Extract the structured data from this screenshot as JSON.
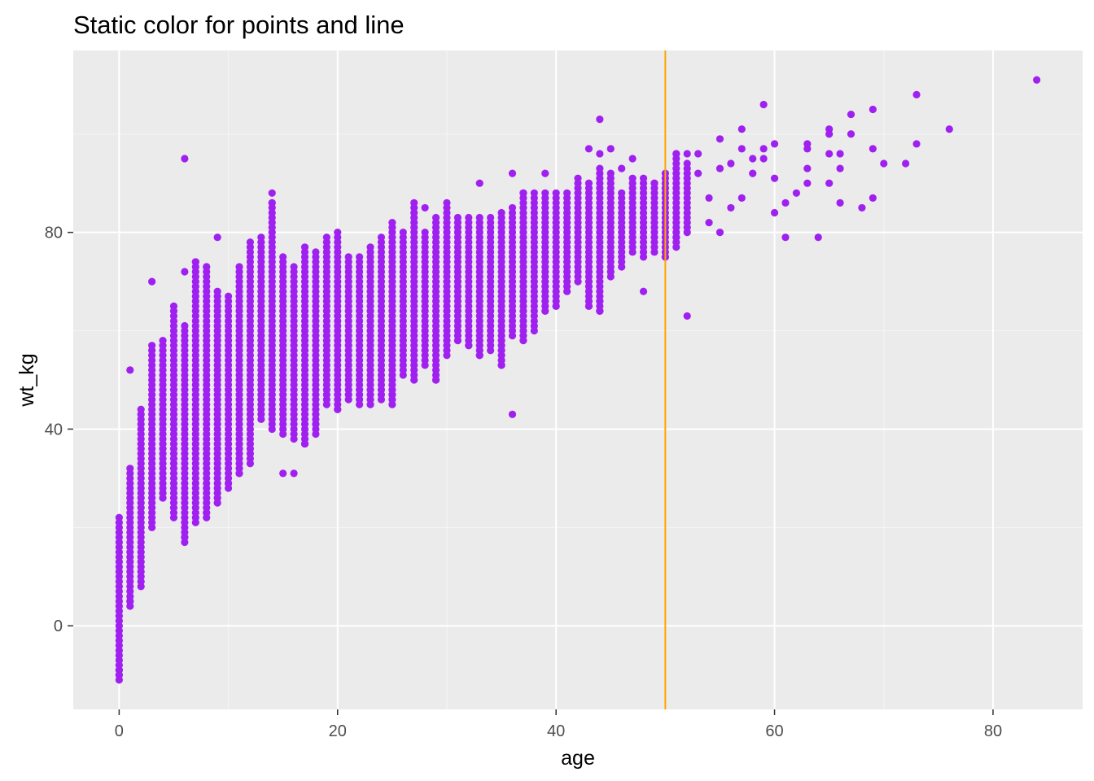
{
  "colors": {
    "panel_background": "#ebebeb",
    "grid_major": "#ffffff",
    "grid_minor": "#f5f5f5",
    "point": "#a020f0",
    "vline": "#ffa500",
    "tick": "#333333",
    "tick_label": "#4d4d4d"
  },
  "chart_data": {
    "type": "scatter",
    "title": "Static color for points and line",
    "xlabel": "age",
    "ylabel": "wt_kg",
    "xlim": [
      -4.2,
      88.2
    ],
    "ylim": [
      -17,
      117
    ],
    "x_ticks": [
      0,
      20,
      40,
      60,
      80
    ],
    "y_ticks": [
      0,
      40,
      80
    ],
    "x_tick_labels": [
      "0",
      "20",
      "40",
      "60",
      "80"
    ],
    "y_tick_labels": [
      "0",
      "40",
      "80"
    ],
    "grid": true,
    "legend": "none",
    "vline": {
      "x": 50
    },
    "columns": [
      [
        0,
        -11,
        22
      ],
      [
        1,
        4,
        32
      ],
      [
        2,
        8,
        44
      ],
      [
        3,
        20,
        57
      ],
      [
        4,
        26,
        58
      ],
      [
        5,
        22,
        65
      ],
      [
        6,
        17,
        61
      ],
      [
        7,
        21,
        74
      ],
      [
        8,
        22,
        73
      ],
      [
        9,
        26,
        68
      ],
      [
        10,
        28,
        67
      ],
      [
        11,
        31,
        73
      ],
      [
        12,
        33,
        78
      ],
      [
        13,
        42,
        79
      ],
      [
        14,
        40,
        86
      ],
      [
        15,
        39,
        75
      ],
      [
        16,
        38,
        73
      ],
      [
        17,
        37,
        77
      ],
      [
        18,
        39,
        76
      ],
      [
        19,
        45,
        79
      ],
      [
        20,
        44,
        80
      ],
      [
        21,
        46,
        75
      ],
      [
        22,
        45,
        75
      ],
      [
        23,
        45,
        77
      ],
      [
        24,
        46,
        79
      ],
      [
        25,
        45,
        82
      ],
      [
        26,
        51,
        80
      ],
      [
        27,
        50,
        85
      ],
      [
        28,
        53,
        80
      ],
      [
        29,
        50,
        83
      ],
      [
        30,
        55,
        86
      ],
      [
        31,
        58,
        83
      ],
      [
        32,
        57,
        83
      ],
      [
        33,
        55,
        83
      ],
      [
        34,
        56,
        83
      ],
      [
        35,
        53,
        84
      ],
      [
        36,
        59,
        85
      ],
      [
        37,
        58,
        88
      ],
      [
        38,
        60,
        88
      ],
      [
        39,
        64,
        88
      ],
      [
        40,
        65,
        88
      ],
      [
        41,
        68,
        88
      ],
      [
        42,
        70,
        90
      ],
      [
        43,
        65,
        90
      ],
      [
        44,
        64,
        93
      ],
      [
        45,
        71,
        92
      ],
      [
        46,
        73,
        88
      ],
      [
        47,
        76,
        91
      ],
      [
        48,
        75,
        90
      ],
      [
        49,
        76,
        90
      ],
      [
        50,
        75,
        92
      ],
      [
        51,
        77,
        96
      ],
      [
        52,
        80,
        94
      ]
    ],
    "points": [
      [
        0,
        -10
      ],
      [
        0,
        -9
      ],
      [
        1,
        52
      ],
      [
        1,
        5
      ],
      [
        3,
        70
      ],
      [
        4,
        27
      ],
      [
        6,
        95
      ],
      [
        6,
        18
      ],
      [
        6,
        72
      ],
      [
        7,
        74
      ],
      [
        8,
        73
      ],
      [
        8,
        23
      ],
      [
        9,
        79
      ],
      [
        9,
        25
      ],
      [
        10,
        29
      ],
      [
        11,
        31
      ],
      [
        14,
        88
      ],
      [
        14,
        86
      ],
      [
        15,
        31
      ],
      [
        16,
        31
      ],
      [
        17,
        37
      ],
      [
        18,
        41
      ],
      [
        20,
        44
      ],
      [
        25,
        47
      ],
      [
        27,
        86
      ],
      [
        28,
        85
      ],
      [
        29,
        50
      ],
      [
        32,
        57
      ],
      [
        33,
        90
      ],
      [
        33,
        55
      ],
      [
        35,
        53
      ],
      [
        36,
        92
      ],
      [
        36,
        43
      ],
      [
        37,
        88
      ],
      [
        39,
        92
      ],
      [
        40,
        65
      ],
      [
        42,
        91
      ],
      [
        43,
        97
      ],
      [
        43,
        65
      ],
      [
        44,
        103
      ],
      [
        44,
        96
      ],
      [
        44,
        64
      ],
      [
        44,
        66
      ],
      [
        45,
        97
      ],
      [
        45,
        72
      ],
      [
        46,
        93
      ],
      [
        47,
        95
      ],
      [
        48,
        68
      ],
      [
        48,
        91
      ],
      [
        49,
        90
      ],
      [
        50,
        75
      ],
      [
        50,
        89
      ],
      [
        51,
        96
      ],
      [
        51,
        79
      ],
      [
        52,
        96
      ],
      [
        52,
        63
      ],
      [
        53,
        96
      ],
      [
        53,
        92
      ],
      [
        54,
        87
      ],
      [
        54,
        82
      ],
      [
        55,
        99
      ],
      [
        55,
        93
      ],
      [
        55,
        80
      ],
      [
        56,
        94
      ],
      [
        56,
        85
      ],
      [
        57,
        97
      ],
      [
        57,
        101
      ],
      [
        57,
        87
      ],
      [
        58,
        95
      ],
      [
        58,
        92
      ],
      [
        59,
        106
      ],
      [
        59,
        97
      ],
      [
        59,
        95
      ],
      [
        60,
        98
      ],
      [
        60,
        84
      ],
      [
        60,
        91
      ],
      [
        61,
        86
      ],
      [
        61,
        79
      ],
      [
        62,
        88
      ],
      [
        63,
        98
      ],
      [
        63,
        97
      ],
      [
        63,
        93
      ],
      [
        63,
        90
      ],
      [
        64,
        79
      ],
      [
        65,
        101
      ],
      [
        65,
        100
      ],
      [
        65,
        96
      ],
      [
        65,
        90
      ],
      [
        66,
        96
      ],
      [
        66,
        93
      ],
      [
        66,
        86
      ],
      [
        67,
        104
      ],
      [
        67,
        100
      ],
      [
        68,
        85
      ],
      [
        69,
        105
      ],
      [
        69,
        97
      ],
      [
        69,
        87
      ],
      [
        70,
        94
      ],
      [
        72,
        94
      ],
      [
        73,
        108
      ],
      [
        73,
        98
      ],
      [
        76,
        101
      ],
      [
        84,
        111
      ]
    ]
  }
}
